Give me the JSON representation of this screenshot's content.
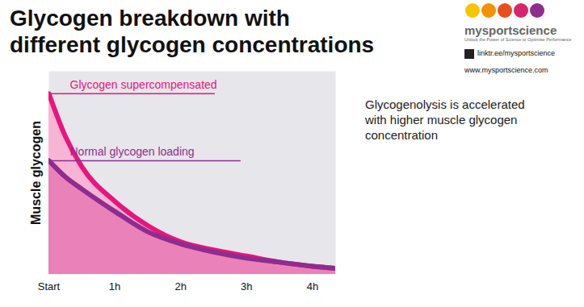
{
  "chart_data": {
    "type": "line",
    "title": "Glycogen breakdown with\ndifferent glycogen concentrations",
    "ylabel": "Muscle glycogen",
    "x": [
      0,
      0.25,
      0.5,
      1,
      1.5,
      2,
      2.5,
      3,
      3.5,
      4,
      4.35
    ],
    "series": [
      {
        "name": "Glycogen supercompensated",
        "color": "#e8157d",
        "values": [
          89,
          68,
          53,
          36,
          24,
          16,
          12,
          9,
          6,
          4,
          3
        ]
      },
      {
        "name": "Normal glycogen loading",
        "color": "#8e2d8f",
        "values": [
          56,
          48,
          42,
          31,
          21,
          15,
          11,
          8,
          6,
          4,
          3
        ]
      }
    ],
    "xlim": [
      0,
      4.35
    ],
    "ylim": [
      0,
      100
    ],
    "xticks": [
      {
        "value": 0,
        "label": "Start"
      },
      {
        "value": 1,
        "label": "1h"
      },
      {
        "value": 2,
        "label": "2h"
      },
      {
        "value": 3,
        "label": "3h"
      },
      {
        "value": 4,
        "label": "4h"
      }
    ],
    "tick_labels": "x",
    "annotations": [
      "Glycogenolysis is accelerated\nwith higher muscle glycogen\nconcentration"
    ]
  },
  "logo": {
    "name": "mysportscience",
    "tagline": "Unlock the Power of Science to Optimise Performance",
    "links": [
      "linktr.ee/mysportscience",
      "www.mysportscience.com"
    ]
  }
}
